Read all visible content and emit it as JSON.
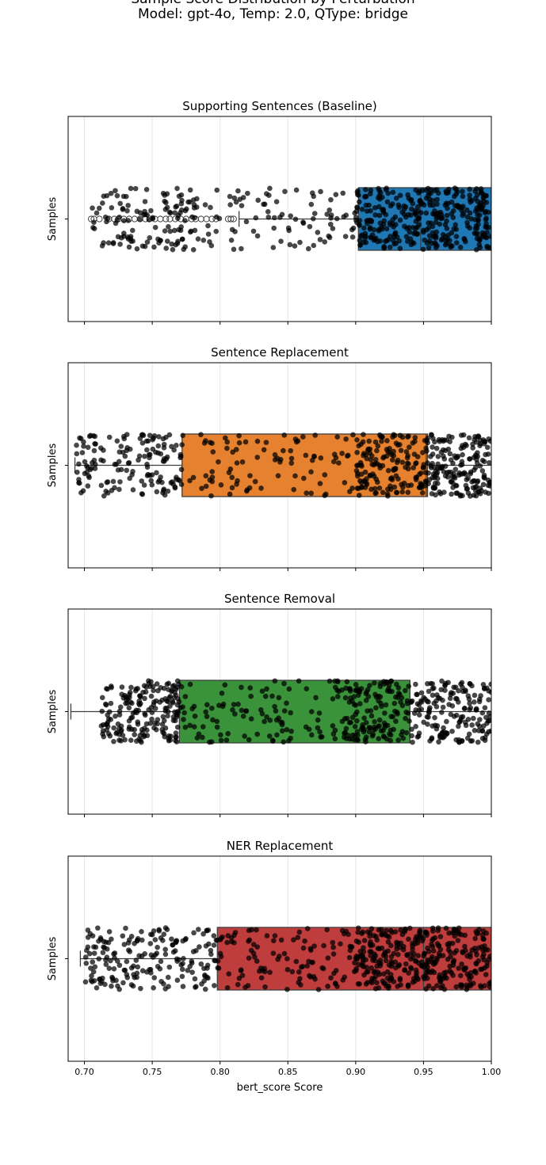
{
  "title_line1": "Sample Score Distribution by Perturbation",
  "title_line2": "Model: gpt-4o, Temp: 2.0, QType: bridge",
  "chart_data": {
    "type": "box",
    "xlabel": "bert_score Score",
    "ylabel": "Samples",
    "xlim": [
      0.688,
      1.0
    ],
    "xticks": [
      "0.70",
      "0.75",
      "0.80",
      "0.85",
      "0.90",
      "0.95",
      "1.00"
    ],
    "grid": "vertical",
    "overlay": "jittered strip points (black)",
    "panels": [
      {
        "title": "Supporting Sentences (Baseline)",
        "color": "#1f77b4",
        "whisker_low": 0.814,
        "q1": 0.902,
        "median": 0.948,
        "q3": 1.0,
        "whisker_high": 1.0,
        "outliers": [
          0.705,
          0.707,
          0.711,
          0.718,
          0.722,
          0.725,
          0.729,
          0.733,
          0.737,
          0.741,
          0.745,
          0.748,
          0.752,
          0.756,
          0.76,
          0.763,
          0.767,
          0.771,
          0.775,
          0.779,
          0.782,
          0.786,
          0.79,
          0.794,
          0.797,
          0.806,
          0.808,
          0.81
        ],
        "strip_ranges": [
          [
            0.705,
            0.8,
            140
          ],
          [
            0.806,
            0.9,
            75
          ],
          [
            0.9,
            1.0,
            360
          ]
        ]
      },
      {
        "title": "Sentence Replacement",
        "color": "#e6812f",
        "whisker_low": 0.693,
        "q1": 0.772,
        "median": 0.952,
        "q3": 0.953,
        "whisker_high": 1.0,
        "outliers": [],
        "strip_ranges": [
          [
            0.693,
            0.772,
            150
          ],
          [
            0.772,
            0.9,
            90
          ],
          [
            0.9,
            0.953,
            160
          ],
          [
            0.953,
            1.0,
            180
          ]
        ]
      },
      {
        "title": "Sentence Removal",
        "color": "#3a923a",
        "whisker_low": 0.69,
        "q1": 0.77,
        "median": 0.94,
        "q3": 0.94,
        "whisker_high": 1.0,
        "outliers": [],
        "strip_ranges": [
          [
            0.712,
            0.77,
            190
          ],
          [
            0.77,
            0.89,
            110
          ],
          [
            0.89,
            0.95,
            170
          ],
          [
            0.95,
            1.0,
            150
          ]
        ]
      },
      {
        "title": "NER Replacement",
        "color": "#c03d3e",
        "whisker_low": 0.697,
        "q1": 0.798,
        "median": 0.95,
        "q3": 1.0,
        "whisker_high": 1.0,
        "outliers": [],
        "strip_ranges": [
          [
            0.7,
            0.798,
            190
          ],
          [
            0.798,
            0.9,
            110
          ],
          [
            0.9,
            0.96,
            230
          ],
          [
            0.96,
            1.0,
            130
          ]
        ]
      }
    ]
  }
}
